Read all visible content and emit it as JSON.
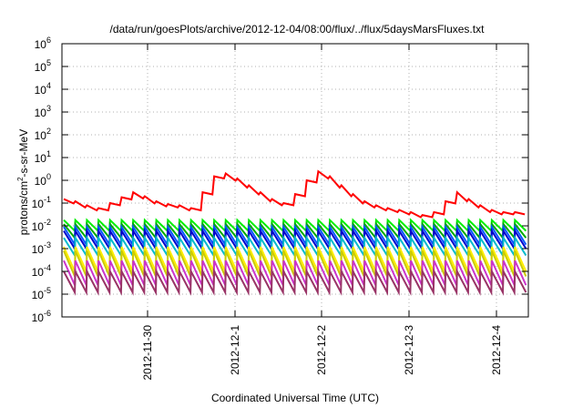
{
  "chart_data": {
    "type": "line",
    "title": "/data/run/goesPlots/archive/2012-12-04/08:00/flux/../flux/5daysMarsFluxes.txt",
    "xlabel": "Coordinated Universal Time (UTC)",
    "ylabel": {
      "base": "protons/cm",
      "sup": "2",
      "rest": "-s-sr-MeV"
    },
    "x_ticks": [
      "2012-11-30",
      "2012-12-1",
      "2012-12-2",
      "2012-12-3",
      "2012-12-4"
    ],
    "x_range": [
      "2012-11-29 07:00",
      "2012-12-04 08:00"
    ],
    "y_scale": "log",
    "ylim": [
      1e-06,
      1000000.0
    ],
    "y_ticks": [
      {
        "base": "10",
        "exp": "-6"
      },
      {
        "base": "10",
        "exp": "-5"
      },
      {
        "base": "10",
        "exp": "-4"
      },
      {
        "base": "10",
        "exp": "-3"
      },
      {
        "base": "10",
        "exp": "-2"
      },
      {
        "base": "10",
        "exp": "-1"
      },
      {
        "base": "10",
        "exp": "0"
      },
      {
        "base": "10",
        "exp": "1"
      },
      {
        "base": "10",
        "exp": "2"
      },
      {
        "base": "10",
        "exp": "3"
      },
      {
        "base": "10",
        "exp": "4"
      },
      {
        "base": "10",
        "exp": "5"
      },
      {
        "base": "10",
        "exp": "6"
      }
    ],
    "grid": true,
    "sawtooth_cycles": 40,
    "series": [
      {
        "color": "#ff0000",
        "values": [
          0.15,
          0.12,
          0.08,
          0.06,
          0.1,
          0.18,
          0.3,
          0.2,
          0.12,
          0.09,
          0.08,
          0.06,
          0.3,
          1.5,
          2.0,
          1.2,
          0.6,
          0.3,
          0.15,
          0.1,
          0.25,
          1.0,
          2.5,
          1.5,
          0.6,
          0.25,
          0.12,
          0.08,
          0.06,
          0.05,
          0.04,
          0.03,
          0.04,
          0.12,
          0.3,
          0.15,
          0.08,
          0.05,
          0.04,
          0.04
        ]
      },
      {
        "color": "#00ee00",
        "peak": 0.018,
        "trough": 0.006
      },
      {
        "color": "#00aa00",
        "peak": 0.012,
        "trough": 0.003
      },
      {
        "color": "#0055ff",
        "peak": 0.009,
        "trough": 0.0015
      },
      {
        "color": "#0000cc",
        "peak": 0.006,
        "trough": 0.001
      },
      {
        "color": "#00bbcc",
        "peak": 0.003,
        "trough": 0.0005
      },
      {
        "color": "#ffee00",
        "peak": 0.0012,
        "trough": 0.0001
      },
      {
        "color": "#cccc00",
        "peak": 0.0008,
        "trough": 6e-05
      },
      {
        "color": "#cc33cc",
        "peak": 0.0003,
        "trough": 2.5e-05
      },
      {
        "color": "#993366",
        "peak": 0.0001,
        "trough": 1.2e-05
      }
    ]
  }
}
